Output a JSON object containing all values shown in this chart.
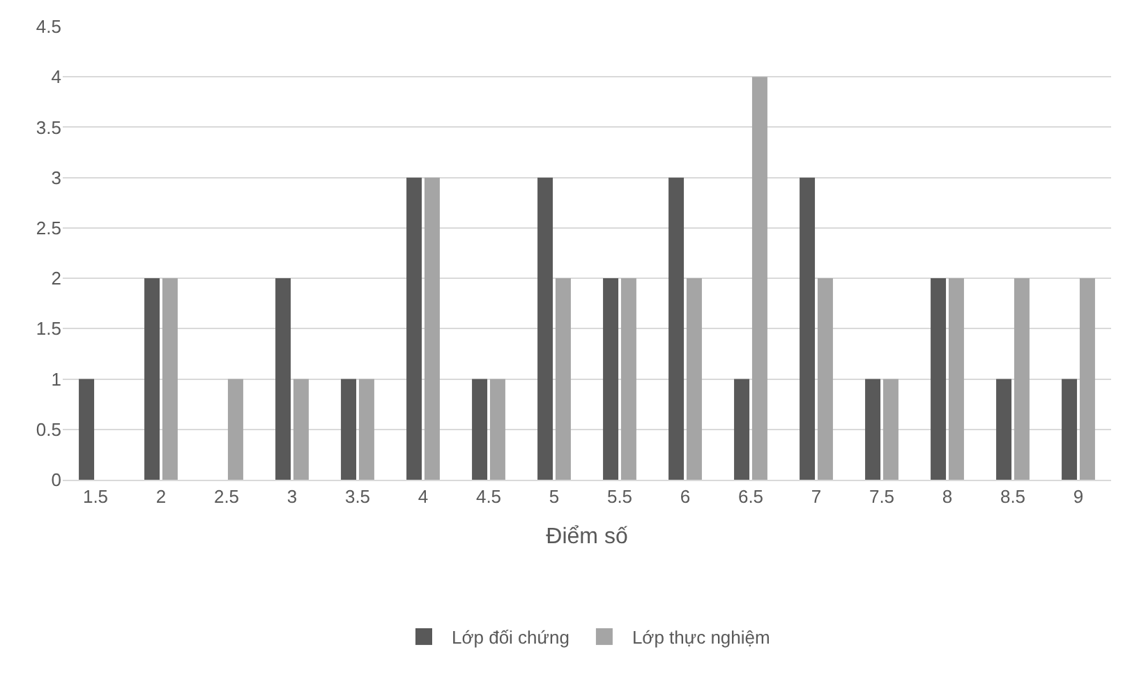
{
  "chart_data": {
    "type": "bar",
    "xlabel": "Điểm số",
    "categories": [
      "1.5",
      "2",
      "2.5",
      "3",
      "3.5",
      "4",
      "4.5",
      "5",
      "5.5",
      "6",
      "6.5",
      "7",
      "7.5",
      "8",
      "8.5",
      "9"
    ],
    "series": [
      {
        "name": "Lớp đối chứng",
        "color": "#595959",
        "values": [
          1,
          2,
          0,
          2,
          1,
          3,
          1,
          3,
          2,
          3,
          1,
          3,
          1,
          2,
          1,
          1
        ]
      },
      {
        "name": "Lớp thực nghiệm",
        "color": "#a5a5a5",
        "values": [
          0,
          2,
          1,
          1,
          1,
          3,
          1,
          2,
          2,
          2,
          4,
          2,
          1,
          2,
          2,
          2
        ]
      }
    ],
    "ylim": [
      0,
      4.5
    ],
    "yticks": [
      0,
      0.5,
      1,
      1.5,
      2,
      2.5,
      3,
      3.5,
      4,
      4.5
    ],
    "grid": "y",
    "legend": "bottom"
  }
}
